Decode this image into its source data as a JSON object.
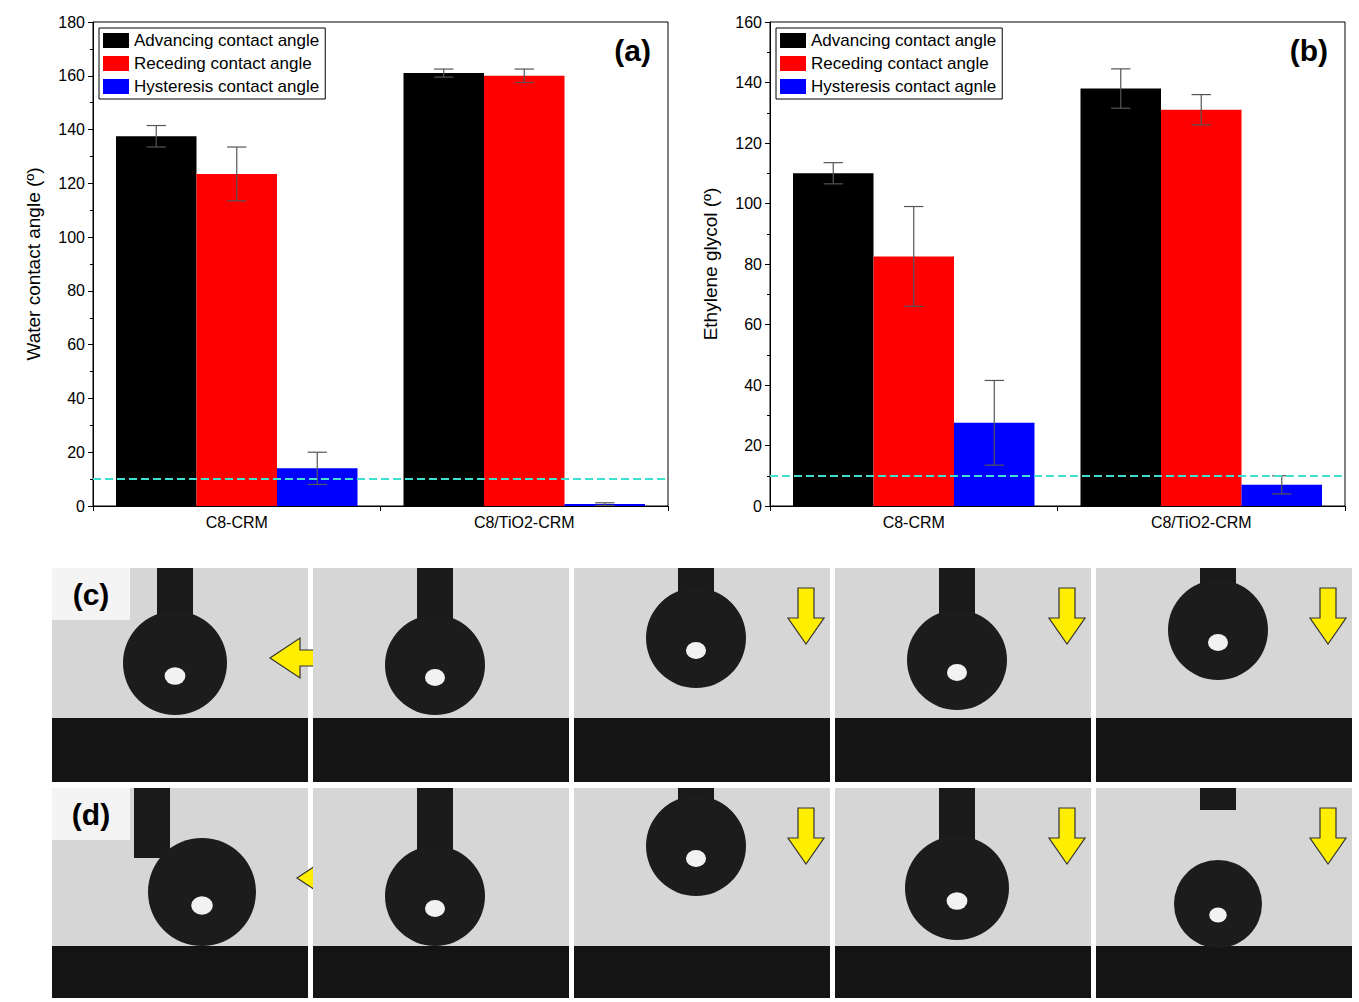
{
  "chart_data": [
    {
      "type": "bar",
      "title": "(a)",
      "ylabel": "Water contact angle (º)",
      "categories": [
        "C8-CRM",
        "C8/TiO2-CRM"
      ],
      "series": [
        {
          "name": "Advancing contact angle",
          "color": "#000000",
          "values": [
            137.5,
            161
          ],
          "errors": [
            4,
            1.5
          ]
        },
        {
          "name": "Receding contact angle",
          "color": "#ff0000",
          "values": [
            123.5,
            160
          ],
          "errors": [
            10,
            2.5
          ]
        },
        {
          "name": "Hysteresis contact angle",
          "color": "#0000ff",
          "values": [
            14,
            0.7
          ],
          "errors": [
            6,
            0.5
          ]
        }
      ],
      "ylim": [
        0,
        180
      ],
      "yticks": [
        0,
        20,
        40,
        60,
        80,
        100,
        120,
        140,
        160,
        180
      ],
      "legend": "upper left",
      "reference_line": {
        "value": 10,
        "color": "#40e0d0",
        "line_style": "dashed"
      }
    },
    {
      "type": "bar",
      "title": "(b)",
      "ylabel": "Ethylene glycol (º)",
      "categories": [
        "C8-CRM",
        "C8/TiO2-CRM"
      ],
      "series": [
        {
          "name": "Advancing contact angle",
          "color": "#000000",
          "values": [
            110,
            138
          ],
          "errors": [
            3.5,
            6.5
          ]
        },
        {
          "name": "Receding contact angle",
          "color": "#ff0000",
          "values": [
            82.5,
            131
          ],
          "errors": [
            16.5,
            5
          ]
        },
        {
          "name": "Hysteresis contact agnle",
          "color": "#0000ff",
          "values": [
            27.5,
            7
          ],
          "errors": [
            14,
            3
          ]
        }
      ],
      "ylim": [
        0,
        160
      ],
      "yticks": [
        0,
        20,
        40,
        60,
        80,
        100,
        120,
        140,
        160
      ],
      "legend": "upper left",
      "reference_line": {
        "value": 10,
        "color": "#40e0d0",
        "line_style": "dashed"
      }
    }
  ],
  "panels": [
    {
      "label": "(c)"
    },
    {
      "label": "(d)"
    }
  ]
}
